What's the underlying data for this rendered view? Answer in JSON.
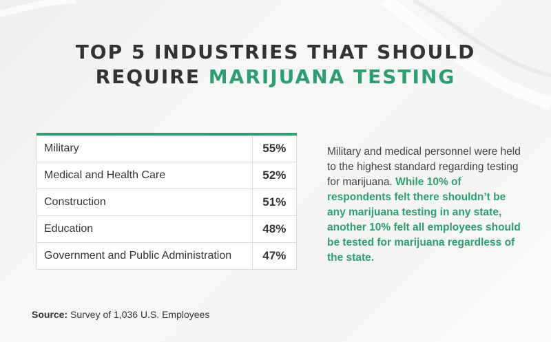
{
  "title": {
    "line1": "TOP 5 INDUSTRIES THAT SHOULD",
    "line2_plain": "REQUIRE ",
    "line2_accent": "MARIJUANA TESTING"
  },
  "colors": {
    "accent": "#2e9e6e",
    "text": "#333333"
  },
  "chart_data": {
    "type": "table",
    "title": "TOP 5 INDUSTRIES THAT SHOULD REQUIRE MARIJUANA TESTING",
    "rows": [
      {
        "label": "Military",
        "value": "55%"
      },
      {
        "label": "Medical and Health Care",
        "value": "52%"
      },
      {
        "label": "Construction",
        "value": "51%"
      },
      {
        "label": "Education",
        "value": "48%"
      },
      {
        "label": "Government and Public Administration",
        "value": "47%"
      }
    ]
  },
  "description": {
    "plain": "Military and medical personnel were held to the highest standard regarding testing for marijuana.",
    "highlight": "While 10% of respondents felt there shouldn’t be any marijuana testing in any state, another 10% felt all employees should be tested for marijuana regardless of the state."
  },
  "source": {
    "label": "Source:",
    "text": "Survey of 1,036 U.S. Employees"
  }
}
